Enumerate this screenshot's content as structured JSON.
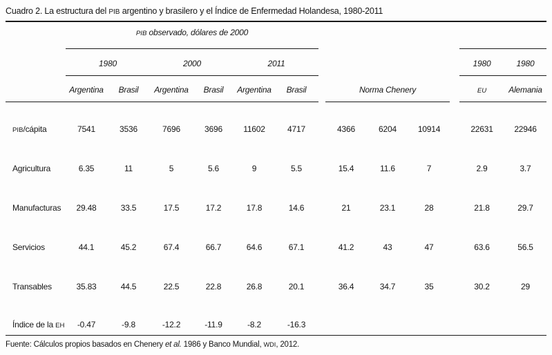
{
  "title": "Cuadro 2. La estructura del PIB argentino y brasilero y el Índice de Enfermedad Holandesa, 1980-2011",
  "table": {
    "group_pib": "PIB observado, dólares de 2000",
    "years": [
      "1980",
      "2000",
      "2011"
    ],
    "country_cols": [
      "Argentina",
      "Brasil",
      "Argentina",
      "Brasil",
      "Argentina",
      "Brasil"
    ],
    "norma_chenery": "Norma Chenery",
    "ref_years": [
      "1980",
      "1980"
    ],
    "ref_cols": [
      "EU",
      "Alemania"
    ],
    "rows": [
      {
        "label": "PIB/cápita",
        "pib": [
          "7541",
          "3536",
          "7696",
          "3696",
          "11602",
          "4717"
        ],
        "chenery": [
          "4366",
          "6204",
          "10914"
        ],
        "ref": [
          "22631",
          "22946"
        ]
      },
      {
        "label": "Agricultura",
        "pib": [
          "6.35",
          "11",
          "5",
          "5.6",
          "9",
          "5.5"
        ],
        "chenery": [
          "15.4",
          "11.6",
          "7"
        ],
        "ref": [
          "2.9",
          "3.7"
        ]
      },
      {
        "label": "Manufacturas",
        "pib": [
          "29.48",
          "33.5",
          "17.5",
          "17.2",
          "17.8",
          "14.6"
        ],
        "chenery": [
          "21",
          "23.1",
          "28"
        ],
        "ref": [
          "21.8",
          "29.7"
        ]
      },
      {
        "label": "Servicios",
        "pib": [
          "44.1",
          "45.2",
          "67.4",
          "66.7",
          "64.6",
          "67.1"
        ],
        "chenery": [
          "41.2",
          "43",
          "47"
        ],
        "ref": [
          "63.6",
          "56.5"
        ]
      },
      {
        "label": "Transables",
        "pib": [
          "35.83",
          "44.5",
          "22.5",
          "22.8",
          "26.8",
          "20.1"
        ],
        "chenery": [
          "36.4",
          "34.7",
          "35"
        ],
        "ref": [
          "30.2",
          "29"
        ]
      },
      {
        "label": "Índice de la EH",
        "pib": [
          "-0.47",
          "-9.8",
          "-12.2",
          "-11.9",
          "-8.2",
          "-16.3"
        ],
        "chenery": [
          "",
          "",
          ""
        ],
        "ref": [
          "",
          ""
        ]
      }
    ]
  },
  "source": "Fuente: Cálculos propios basados en Chenery et al. 1986 y Banco Mundial, WDI, 2012.",
  "format": {
    "smallcaps": [
      "PIB",
      "EH",
      "WDI",
      "EU"
    ],
    "italics": [
      "et al."
    ]
  },
  "colors": {
    "ink": "#1a1a1a",
    "paper": "#fdfdfd"
  }
}
